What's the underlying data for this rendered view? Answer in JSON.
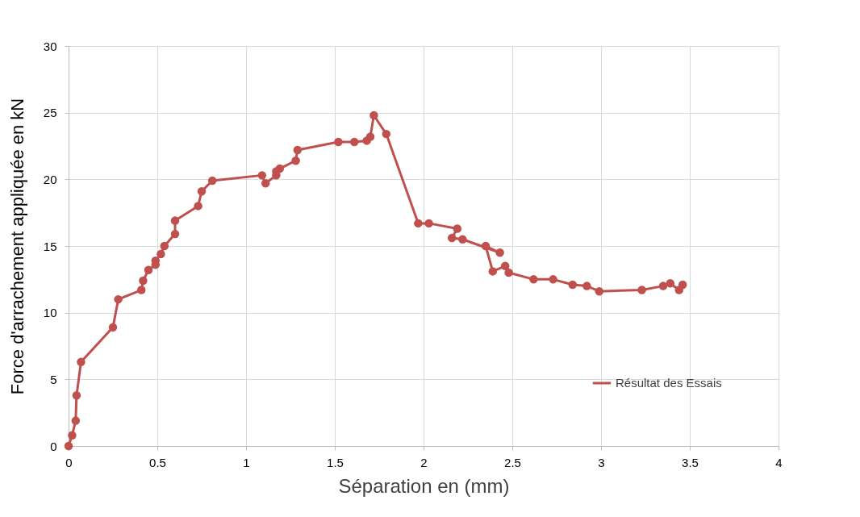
{
  "chart_data": {
    "type": "line",
    "xlabel": "Séparation en (mm)",
    "ylabel": "Force d'arrachement appliquée en kN",
    "xlim": [
      0,
      4
    ],
    "xticks": [
      0,
      0.5,
      1,
      1.5,
      2,
      2.5,
      3,
      3.5,
      4
    ],
    "ylim": [
      0,
      30
    ],
    "yticks": [
      0,
      5,
      10,
      15,
      20,
      25,
      30
    ],
    "grid": true,
    "legend": "bottom right",
    "marker": "circle",
    "line_style": "solid",
    "series": [
      {
        "name": "Résultat des Essais",
        "color": "#c0504d",
        "x": [
          0,
          0.02,
          0.04,
          0.045,
          0.07,
          0.25,
          0.28,
          0.41,
          0.42,
          0.45,
          0.49,
          0.49,
          0.52,
          0.54,
          0.6,
          0.6,
          0.73,
          0.75,
          0.81,
          1.09,
          1.11,
          1.17,
          1.17,
          1.19,
          1.28,
          1.29,
          1.52,
          1.61,
          1.68,
          1.7,
          1.72,
          1.79,
          1.97,
          2.03,
          2.19,
          2.16,
          2.22,
          2.43,
          2.35,
          2.39,
          2.46,
          2.48,
          2.62,
          2.73,
          2.84,
          2.92,
          2.99,
          3.23,
          3.35,
          3.39,
          3.44,
          3.46
        ],
        "values": [
          0,
          0.8,
          1.9,
          3.8,
          6.3,
          8.9,
          11.0,
          11.7,
          12.4,
          13.2,
          13.6,
          13.9,
          14.4,
          15.0,
          15.9,
          16.9,
          18.0,
          19.1,
          19.9,
          20.3,
          19.7,
          20.3,
          20.6,
          20.8,
          21.4,
          22.2,
          22.8,
          22.8,
          22.9,
          23.2,
          24.8,
          23.4,
          16.7,
          16.7,
          16.3,
          15.6,
          15.5,
          14.5,
          15.0,
          13.1,
          13.5,
          13.0,
          12.5,
          12.5,
          12.1,
          12.0,
          11.6,
          11.7,
          12.0,
          12.2,
          11.7,
          12.1
        ]
      }
    ]
  }
}
